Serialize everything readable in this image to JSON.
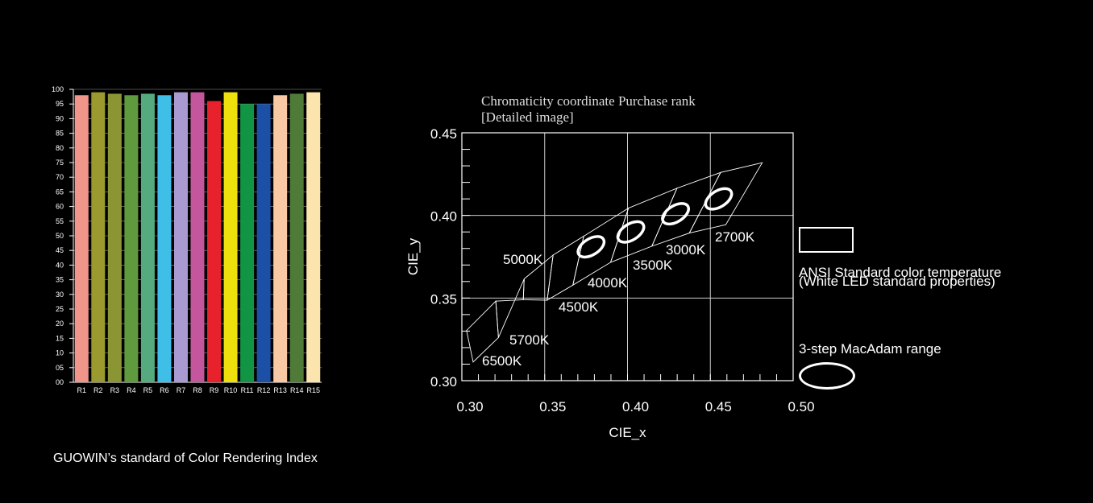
{
  "chart_data": [
    {
      "type": "bar",
      "categories": [
        "R1",
        "R2",
        "R3",
        "R4",
        "R5",
        "R6",
        "R7",
        "R8",
        "R9",
        "R10",
        "R11",
        "R12",
        "R13",
        "R14",
        "R15"
      ],
      "values": [
        98,
        99,
        98.5,
        98,
        98.5,
        98,
        99,
        99,
        96,
        99,
        95,
        95,
        98,
        98.5,
        99
      ],
      "colors": [
        "#f0958a",
        "#9a9a2e",
        "#8c9534",
        "#5f9a3e",
        "#55ab7d",
        "#3fbfe8",
        "#a99ad2",
        "#c4569d",
        "#e8222c",
        "#eee00d",
        "#119443",
        "#1b50a6",
        "#f9c9a5",
        "#4f7a38",
        "#fbe4ad"
      ],
      "ylim": [
        0,
        100
      ],
      "yticks": [
        "00",
        "05",
        "10",
        "15",
        "20",
        "25",
        "30",
        "35",
        "40",
        "45",
        "50",
        "55",
        "60",
        "65",
        "70",
        "75",
        "80",
        "85",
        "90",
        "95",
        "100"
      ],
      "grid": true,
      "caption": "GUOWIN’s standard of Color Rendering Index"
    },
    {
      "type": "scatter",
      "title_line1": "Chromaticity coordinate Purchase rank",
      "title_line2": "[Detailed image]",
      "xlabel": "CIE_x",
      "ylabel": "CIE_y",
      "xlim": [
        0.3,
        0.5
      ],
      "ylim": [
        0.3,
        0.45
      ],
      "xticks": [
        "0.30",
        "0.35",
        "0.40",
        "0.45",
        "0.50"
      ],
      "yticks": [
        "0.30",
        "0.35",
        "0.40",
        "0.45"
      ],
      "grid": true,
      "color_temperatures": [
        {
          "label": "6500K",
          "x": 0.313,
          "y": 0.337
        },
        {
          "label": "5700K",
          "x": 0.328,
          "y": 0.346
        },
        {
          "label": "5000K",
          "x": 0.346,
          "y": 0.359
        },
        {
          "label": "4500K",
          "x": 0.361,
          "y": 0.367
        },
        {
          "label": "4000K",
          "x": 0.38,
          "y": 0.38
        },
        {
          "label": "3500K",
          "x": 0.409,
          "y": 0.394
        },
        {
          "label": "3000K",
          "x": 0.434,
          "y": 0.403
        },
        {
          "label": "2700K",
          "x": 0.458,
          "y": 0.411
        }
      ],
      "macadam_ellipses": [
        {
          "x": 0.378,
          "y": 0.381,
          "angle": 58
        },
        {
          "x": 0.402,
          "y": 0.39,
          "angle": 58
        },
        {
          "x": 0.429,
          "y": 0.401,
          "angle": 58
        },
        {
          "x": 0.455,
          "y": 0.41,
          "angle": 58
        }
      ],
      "legend": {
        "ansi_line1": "ANSI Standard color temperature",
        "ansi_line2": "(White LED standard properties)",
        "macadam": "3-step MacAdam range"
      }
    }
  ]
}
